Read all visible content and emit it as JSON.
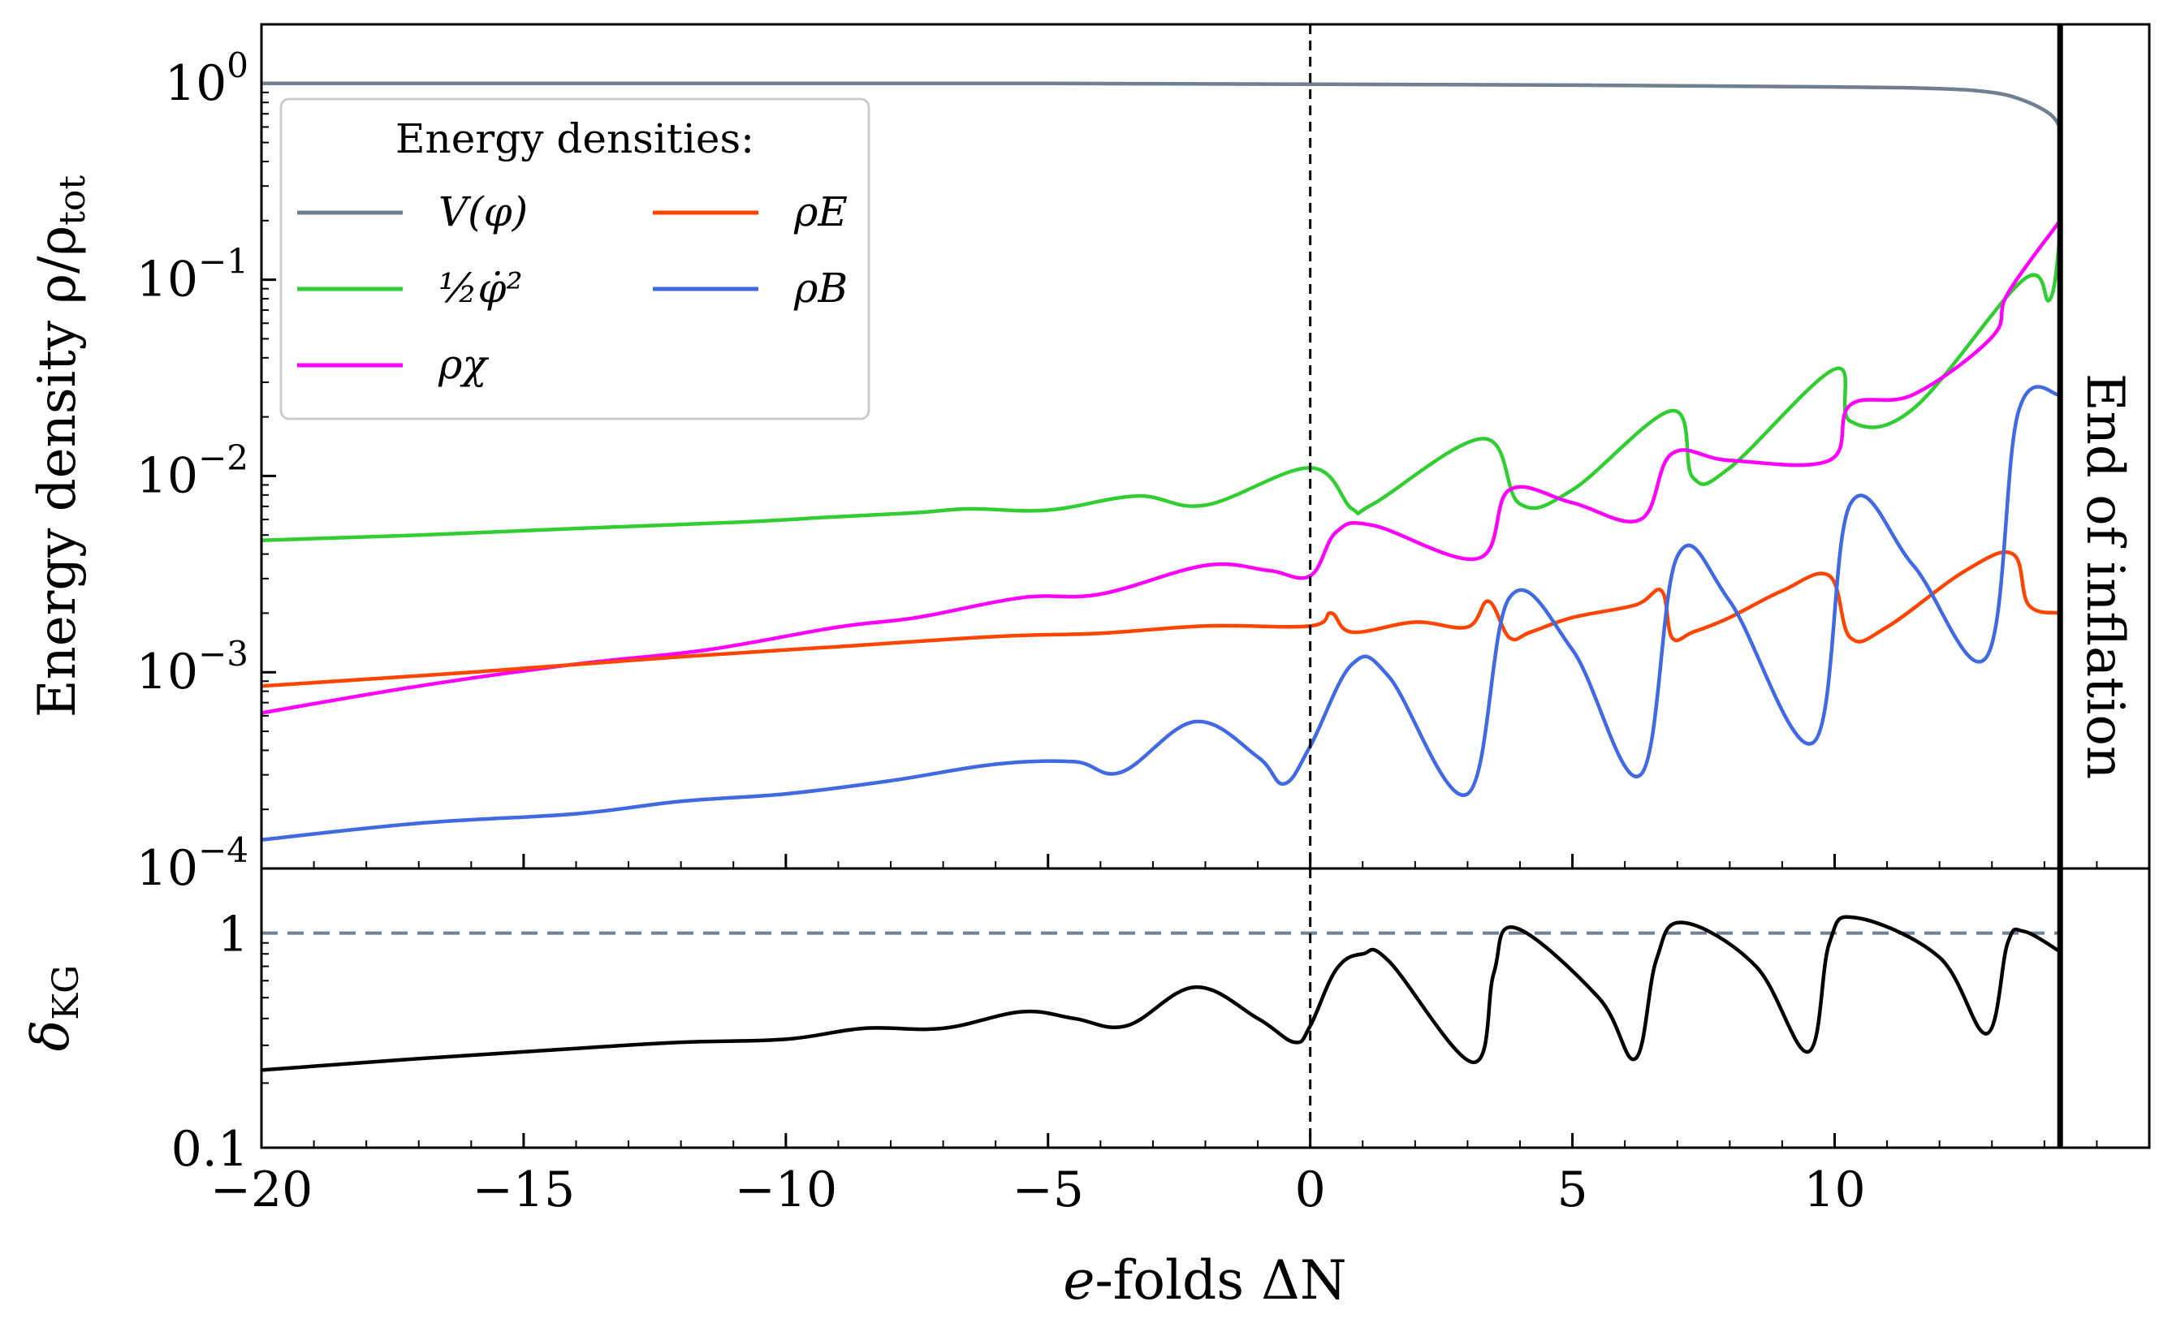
{
  "chart_data": [
    {
      "type": "line",
      "panel": "top",
      "yscale": "log",
      "ylabel": "Energy density ρ/ρ",
      "ylabel_sub": "tot",
      "ylim": [
        0.0001,
        2
      ],
      "xlim": [
        -20,
        16
      ],
      "yticks": [
        {
          "value": 1,
          "base": "10",
          "exp": "0"
        },
        {
          "value": 0.1,
          "base": "10",
          "exp": "−1"
        },
        {
          "value": 0.01,
          "base": "10",
          "exp": "−2"
        },
        {
          "value": 0.001,
          "base": "10",
          "exp": "−3"
        },
        {
          "value": 0.0001,
          "base": "10",
          "exp": "−4"
        }
      ],
      "legend": {
        "title": "Energy densities:",
        "position": "upper-left",
        "entries": [
          {
            "key": "V",
            "label": "V(φ)"
          },
          {
            "key": "kin",
            "label": "½φ̇²"
          },
          {
            "key": "chi",
            "label": "ρχ"
          },
          {
            "key": "E",
            "label": "ρE"
          },
          {
            "key": "B",
            "label": "ρB"
          }
        ]
      },
      "series": [
        {
          "key": "V",
          "name": "V(φ)",
          "color": "#708090",
          "x": [
            -20,
            -10,
            -5,
            0,
            5,
            10,
            12,
            13,
            13.6,
            14.1,
            14.3
          ],
          "y": [
            1.0,
            1.0,
            1.0,
            0.99,
            0.98,
            0.96,
            0.94,
            0.9,
            0.82,
            0.7,
            0.6
          ]
        },
        {
          "key": "kin",
          "name": "½φ̇²",
          "color": "#32cd32",
          "x": [
            -20,
            -17,
            -14,
            -11,
            -9,
            -7.5,
            -6.5,
            -5,
            -3.3,
            -2,
            0,
            0.8,
            1.2,
            3.3,
            4,
            5,
            6.9,
            7.3,
            8,
            10,
            10.3,
            11.5,
            13.6,
            14.1,
            14.3
          ],
          "y": [
            0.0047,
            0.005,
            0.0054,
            0.0058,
            0.0062,
            0.0065,
            0.0068,
            0.0067,
            0.0079,
            0.0071,
            0.011,
            0.0068,
            0.0072,
            0.0155,
            0.0072,
            0.0085,
            0.0215,
            0.0098,
            0.011,
            0.035,
            0.019,
            0.022,
            0.1,
            0.079,
            0.17
          ]
        },
        {
          "key": "chi",
          "name": "ρχ",
          "color": "#ff00ff",
          "x": [
            -20,
            -17,
            -14,
            -11.5,
            -9,
            -7.5,
            -5.5,
            -4,
            -2,
            -0.8,
            0,
            0.5,
            1.2,
            3.2,
            3.8,
            5,
            6.3,
            6.9,
            8,
            9.9,
            10.3,
            11.5,
            13,
            13.3,
            14.3
          ],
          "y": [
            0.00062,
            0.00085,
            0.0011,
            0.0013,
            0.0017,
            0.0019,
            0.0024,
            0.0025,
            0.0035,
            0.0033,
            0.0031,
            0.0052,
            0.0056,
            0.0038,
            0.0085,
            0.0073,
            0.006,
            0.013,
            0.012,
            0.012,
            0.023,
            0.026,
            0.051,
            0.085,
            0.2
          ]
        },
        {
          "key": "E",
          "name": "ρE",
          "color": "#ff4500",
          "x": [
            -20,
            -16,
            -12,
            -9,
            -6,
            -4,
            -2,
            0,
            0.4,
            0.8,
            2,
            3,
            3.4,
            3.8,
            4.2,
            5,
            6.2,
            6.7,
            6.9,
            7.3,
            8,
            9,
            9.9,
            10.3,
            11,
            12.5,
            13.4,
            13.7,
            14.3
          ],
          "y": [
            0.00085,
            0.001,
            0.0012,
            0.00135,
            0.00152,
            0.00158,
            0.00172,
            0.00172,
            0.002,
            0.0016,
            0.0018,
            0.0017,
            0.0023,
            0.0015,
            0.0016,
            0.0019,
            0.0022,
            0.0026,
            0.0015,
            0.0016,
            0.0019,
            0.0026,
            0.0031,
            0.0015,
            0.0017,
            0.0033,
            0.004,
            0.0022,
            0.002
          ]
        },
        {
          "key": "B",
          "name": "ρB",
          "color": "#4169e1",
          "x": [
            -20,
            -17,
            -14,
            -12,
            -10,
            -8,
            -6,
            -4.5,
            -3.6,
            -2.2,
            -1,
            -0.5,
            0,
            0.8,
            1.5,
            3,
            3.8,
            5,
            6.3,
            7,
            8,
            9.6,
            10.3,
            11.5,
            12.9,
            13.5,
            14.3
          ],
          "y": [
            0.00014,
            0.00017,
            0.00019,
            0.00022,
            0.00024,
            0.00028,
            0.00034,
            0.00035,
            0.00031,
            0.00056,
            0.00037,
            0.00027,
            0.00042,
            0.0011,
            0.00095,
            0.00024,
            0.0024,
            0.0013,
            0.0003,
            0.0039,
            0.0023,
            0.00044,
            0.0072,
            0.0035,
            0.0012,
            0.021,
            0.026
          ]
        }
      ],
      "annotations": {
        "vline_dashed_x": 0,
        "vline_solid_x": 14.3,
        "end_text": "End of inflation"
      }
    },
    {
      "type": "line",
      "panel": "bottom",
      "yscale": "log",
      "ylabel": "δ",
      "ylabel_sub": "KG",
      "xlabel_italic": "e",
      "xlabel_rest": "-folds ΔN",
      "ylim": [
        0.1,
        2
      ],
      "xlim": [
        -20,
        16
      ],
      "yticks": [
        {
          "value": 1,
          "label": "1"
        },
        {
          "value": 0.1,
          "label": "0.1"
        }
      ],
      "xticks": [
        {
          "value": -20,
          "label": "−20"
        },
        {
          "value": -15,
          "label": "−15"
        },
        {
          "value": -10,
          "label": "−10"
        },
        {
          "value": -5,
          "label": "−5"
        },
        {
          "value": 0,
          "label": "0"
        },
        {
          "value": 5,
          "label": "5"
        },
        {
          "value": 10,
          "label": "10"
        }
      ],
      "reference_line": {
        "y": 1,
        "color": "#708090"
      },
      "series": [
        {
          "name": "δKG",
          "color": "#000000",
          "x": [
            -20,
            -17,
            -14,
            -12,
            -10,
            -8.5,
            -7,
            -5.5,
            -4.5,
            -3.5,
            -2.2,
            -1,
            -0.3,
            0,
            0.5,
            1,
            1.5,
            3.1,
            3.5,
            3.9,
            5.5,
            6.2,
            6.6,
            7.1,
            8.5,
            9.5,
            9.9,
            10.4,
            12,
            12.9,
            13.3,
            13.6,
            14.3
          ],
          "y": [
            0.23,
            0.26,
            0.29,
            0.31,
            0.32,
            0.36,
            0.36,
            0.43,
            0.4,
            0.37,
            0.56,
            0.4,
            0.31,
            0.37,
            0.68,
            0.8,
            0.74,
            0.25,
            0.65,
            1.06,
            0.5,
            0.26,
            0.75,
            1.12,
            0.7,
            0.28,
            0.9,
            1.18,
            0.77,
            0.34,
            0.9,
            1.02,
            0.82
          ]
        }
      ]
    }
  ]
}
